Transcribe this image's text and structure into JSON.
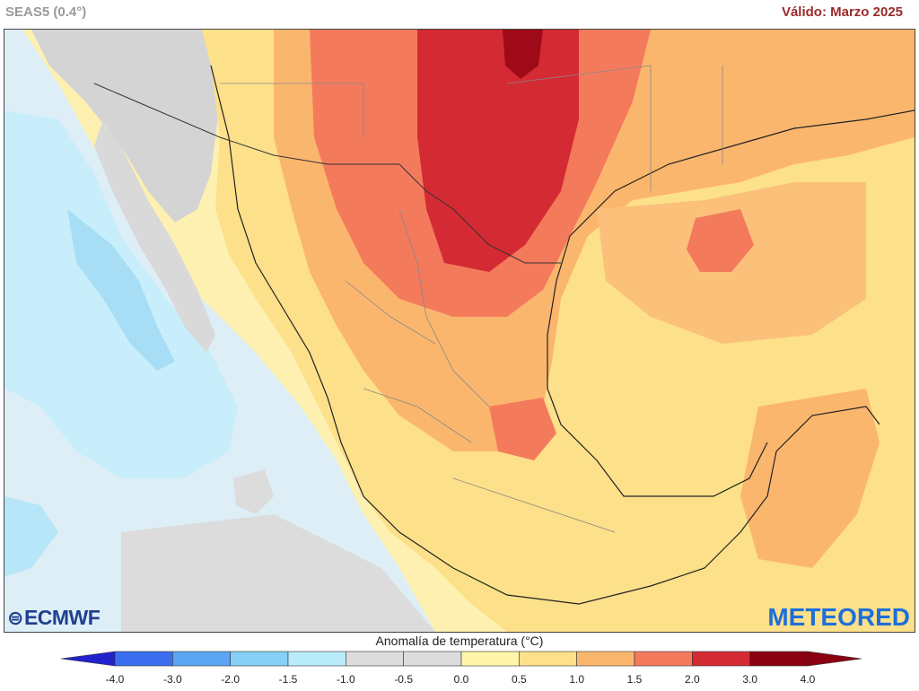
{
  "header": {
    "model": "SEAS5 (0.4°)",
    "valid": "Válido: Marzo 2025"
  },
  "legend": {
    "title": "Anomalía de temperatura (°C)",
    "ticks": [
      "-4.0",
      "-3.0",
      "-2.0",
      "-1.5",
      "-1.0",
      "-0.5",
      "0.0",
      "0.5",
      "1.0",
      "1.5",
      "2.0",
      "3.0",
      "4.0"
    ],
    "colors": [
      "#2222cc",
      "#3b6ff0",
      "#5aa6f2",
      "#86cff6",
      "#b8ecfb",
      "#dcdcdc",
      "#dcdcdc",
      "#fff5a8",
      "#fde08a",
      "#fbb66e",
      "#f47a5c",
      "#d42a33",
      "#8a0010"
    ]
  },
  "logos": {
    "left": "ECMWF",
    "right": "METEORED"
  }
}
